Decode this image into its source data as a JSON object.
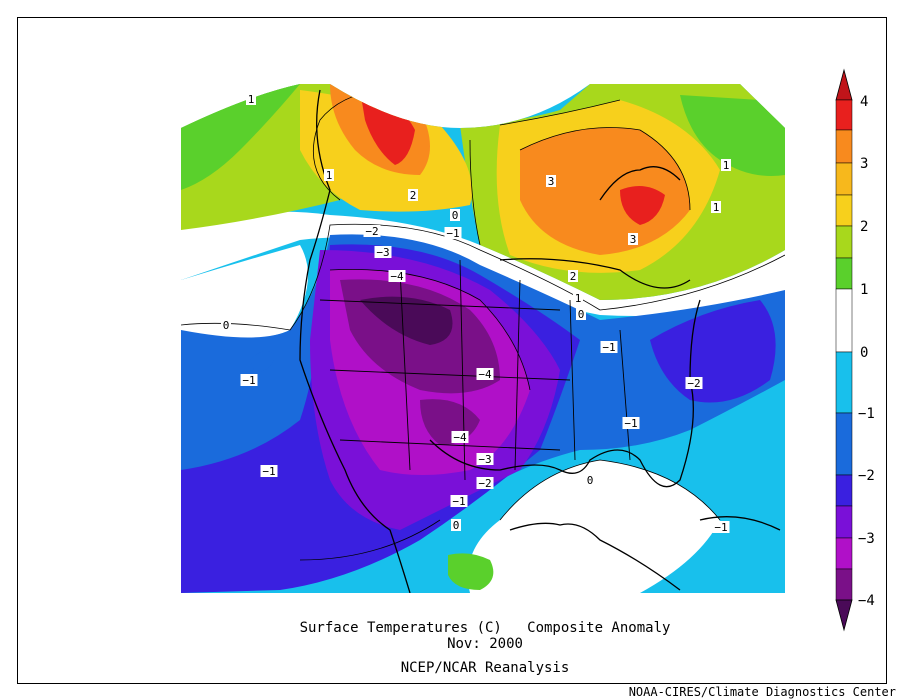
{
  "title": {
    "line1": "Surface Temperatures (C)   Composite Anomaly",
    "line2": "Nov: 2000",
    "line3": "NCEP/NCAR Reanalysis"
  },
  "credit": "NOAA-CIRES/Climate Diagnostics Center",
  "colorbar": {
    "levels": [
      {
        "value": "4",
        "color": "#e8201e"
      },
      {
        "value": "3",
        "color": "#f88a1e"
      },
      {
        "value": "2",
        "color": "#f7d01c"
      },
      {
        "value": "1",
        "color": "#5ad02c"
      },
      {
        "value": "0",
        "color": "#ffffff"
      },
      {
        "value": "−1",
        "color": "#1a6bdc"
      },
      {
        "value": "−2",
        "color": "#6a10e0"
      },
      {
        "value": "−3",
        "color": "#b410c8"
      },
      {
        "value": "−4",
        "color": "#a0107a"
      }
    ],
    "colors": {
      "top_arrow": "#c0141a",
      "bottom_arrow": "#4a0a58",
      "band_4_5": "#e8201e",
      "band_3_4": "#f88a1e",
      "band_2_3": "#f7b81c",
      "band_1_2": "#a8d81c",
      "band_0_1": "#5ad02c",
      "band_m1_0": "#ffffff",
      "band_m2_m1": "#18c0ec",
      "band_m3_m2": "#1a6bdc",
      "band_m4_m3": "#3a20e0",
      "band_m5_m4": "#7a10d8",
      "band_deep1": "#b010c8",
      "band_deep2": "#7a1088"
    }
  },
  "contour_labels": [
    {
      "text": "1"
    },
    {
      "text": "1"
    },
    {
      "text": "2"
    },
    {
      "text": "0"
    },
    {
      "text": "−2"
    },
    {
      "text": "−1"
    },
    {
      "text": "−3"
    },
    {
      "text": "−4"
    },
    {
      "text": "3"
    },
    {
      "text": "3"
    },
    {
      "text": "1"
    },
    {
      "text": "1"
    },
    {
      "text": "2"
    },
    {
      "text": "1"
    },
    {
      "text": "0"
    },
    {
      "text": "0"
    },
    {
      "text": "−1"
    },
    {
      "text": "−1"
    },
    {
      "text": "−4"
    },
    {
      "text": "−2"
    },
    {
      "text": "−1"
    },
    {
      "text": "−4"
    },
    {
      "text": "−3"
    },
    {
      "text": "−2"
    },
    {
      "text": "−1"
    },
    {
      "text": "−1"
    },
    {
      "text": "0"
    },
    {
      "text": "0"
    },
    {
      "text": "−1"
    }
  ]
}
